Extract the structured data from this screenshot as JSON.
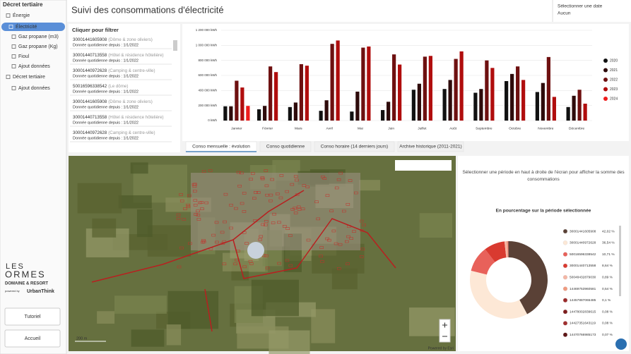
{
  "sidebar": {
    "title": "Décret tertiaire",
    "items": [
      "Énergie",
      "Électricité",
      "Gaz propane (m3)",
      "Gaz propane (Kg)",
      "Fioul",
      "Ajout données",
      "Décret tertiaire",
      "Ajout données"
    ],
    "logo": {
      "top": "LES",
      "name": "ORMES",
      "sub": "DOMAINE & RESORT",
      "powered": "powered by",
      "brand": "UrbanThink"
    },
    "buttons": [
      "Tutoriel",
      "Accueil"
    ]
  },
  "header": {
    "title": "Suivi des consommations d'électricité",
    "date_label": "Sélectionner une date",
    "date_value": "Aucun"
  },
  "list": {
    "title": "Cliquer pour filtrer",
    "items": [
      {
        "id": "30001441605908",
        "desc": "(Dôme & zone oliviers)",
        "since": "Donnée quotidienne depuis : 1/1/2022"
      },
      {
        "id": "30001440713558",
        "desc": "(Hôtel & résidence hôtelière)",
        "since": "Donnée quotidienne depuis : 1/1/2022"
      },
      {
        "id": "30001440972628",
        "desc": "(Camping & centre-ville)",
        "since": "Donnée quotidienne depuis : 1/1/2022"
      },
      {
        "id": "50016596338542",
        "desc": "(Le dôme)",
        "since": "Donnée quotidienne depuis : 1/1/2022"
      },
      {
        "id": "30001441605908",
        "desc": "(Dôme & zone oliviers)",
        "since": "Donnée quotidienne depuis : 1/1/2022"
      },
      {
        "id": "30001440713558",
        "desc": "(Hôtel & résidence hôtelière)",
        "since": "Donnée quotidienne depuis : 1/1/2022"
      },
      {
        "id": "30001440972628",
        "desc": "(Camping & centre-ville)",
        "since": "Donnée quotidienne depuis : 1/1/2022"
      }
    ]
  },
  "tabs": [
    "Conso mensuelle : évolution",
    "Conso quotidienne",
    "Conso horaire (14 derniers jours)",
    "Archive historique (2011-2021)"
  ],
  "map": {
    "scale": "200 m",
    "attribution": "Powered by Esri"
  },
  "info": {
    "message": "Sélectionner une période en haut à droite de l'écran pour afficher la somme des consommations"
  },
  "chart_data": [
    {
      "type": "bar",
      "categories": [
        "Janvier",
        "Février",
        "Mars",
        "Avril",
        "Mai",
        "Juin",
        "Juillet",
        "Août",
        "Septembre",
        "Octobre",
        "Novembre",
        "Décembre"
      ],
      "ylim": [
        0,
        1200000
      ],
      "yticks": [
        {
          "value": 0,
          "label": "0 kWh"
        },
        {
          "value": 200000,
          "label": "200 000 kWh"
        },
        {
          "value": 400000,
          "label": "400 000 kWh"
        },
        {
          "value": 600000,
          "label": "600 000 kWh"
        },
        {
          "value": 800000,
          "label": "800 000 kWh"
        },
        {
          "value": 1000000,
          "label": "1 000 000 kWh"
        },
        {
          "value": 1200000,
          "label": "1 200 000 kWh"
        }
      ],
      "grid": true,
      "series": [
        {
          "name": "2020",
          "color": "#111111",
          "values": [
            190000,
            150000,
            180000,
            130000,
            120000,
            140000,
            410000,
            420000,
            370000,
            525000,
            380000,
            180000
          ]
        },
        {
          "name": "2021",
          "color": "#2e0b0b",
          "values": [
            190000,
            195000,
            240000,
            270000,
            385000,
            250000,
            490000,
            540000,
            420000,
            620000,
            500000,
            330000
          ]
        },
        {
          "name": "2022",
          "color": "#6e1010",
          "values": [
            530000,
            720000,
            750000,
            1020000,
            970000,
            880000,
            850000,
            820000,
            800000,
            720000,
            845000,
            410000
          ]
        },
        {
          "name": "2023",
          "color": "#b00d0d",
          "values": [
            440000,
            645000,
            730000,
            1065000,
            985000,
            745000,
            860000,
            920000,
            700000,
            540000,
            315000,
            225000
          ]
        },
        {
          "name": "2024",
          "color": "#ee1c1c",
          "values": [
            195000,
            null,
            null,
            null,
            null,
            null,
            null,
            null,
            null,
            null,
            null,
            null
          ]
        }
      ]
    },
    {
      "type": "pie",
      "title": "En pourcentage sur la période sélectionnée",
      "categories": [
        "30001441605908",
        "30001440972628",
        "50016596338542",
        "30001440713558",
        "50048432879030",
        "14469753960581",
        "14457887065485",
        "14478002839615",
        "14427351643119",
        "14470766985173"
      ],
      "values": [
        42.02,
        36.54,
        10.71,
        8.64,
        0.89,
        0.54,
        0.1,
        0.08,
        0.08,
        0.07
      ],
      "value_labels": [
        "42,02 %",
        "36,54 %",
        "10,71 %",
        "8,64 %",
        "0,89 %",
        "0,54 %",
        "0,1 %",
        "0,08 %",
        "0,08 %",
        "0,07 %"
      ],
      "colors": [
        "#5a4136",
        "#fde8d6",
        "#e8615a",
        "#d93a30",
        "#f4b6a5",
        "#f09a7f",
        "#9b2a2a",
        "#7d1d1d",
        "#a03030",
        "#5e1616"
      ]
    }
  ]
}
